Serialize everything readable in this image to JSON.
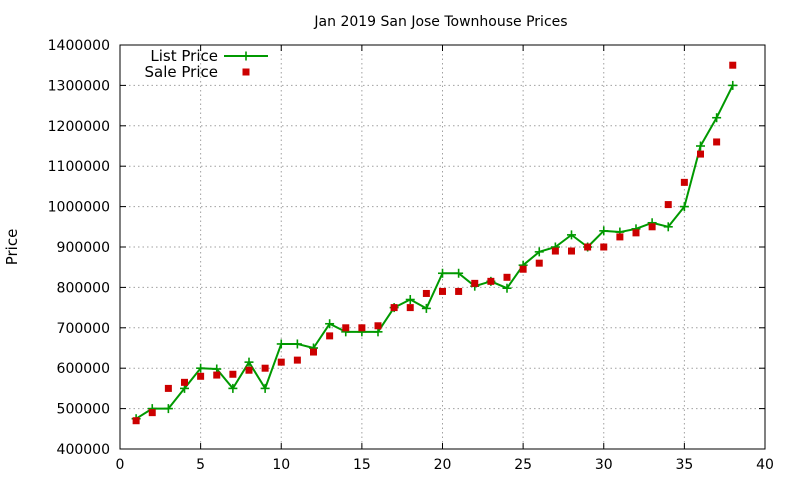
{
  "chart_data": {
    "type": "line",
    "title": "Jan 2019 San Jose Townhouse Prices",
    "xlabel": "",
    "ylabel": "Price",
    "xlim": [
      0,
      40
    ],
    "ylim": [
      400000,
      1400000
    ],
    "xticks": [
      0,
      5,
      10,
      15,
      20,
      25,
      30,
      35,
      40
    ],
    "yticks": [
      400000,
      500000,
      600000,
      700000,
      800000,
      900000,
      1000000,
      1100000,
      1200000,
      1300000,
      1400000
    ],
    "grid": true,
    "legend_position": "top-left",
    "x": [
      1,
      2,
      3,
      4,
      5,
      6,
      7,
      8,
      9,
      10,
      11,
      12,
      13,
      14,
      15,
      16,
      17,
      18,
      19,
      20,
      21,
      22,
      23,
      24,
      25,
      26,
      27,
      28,
      29,
      30,
      31,
      32,
      33,
      34,
      35,
      36,
      37,
      38
    ],
    "series": [
      {
        "name": "List Price",
        "style": "line-with-plus-markers",
        "color": "#009900",
        "values": [
          475000,
          500000,
          500000,
          550000,
          600000,
          598000,
          550000,
          615000,
          550000,
          660000,
          660000,
          650000,
          710000,
          690000,
          690000,
          690000,
          750000,
          770000,
          748000,
          835000,
          835000,
          803000,
          815000,
          798000,
          855000,
          888000,
          900000,
          930000,
          900000,
          940000,
          937000,
          945000,
          960000,
          950000,
          1000000,
          1150000,
          1220000,
          1300000
        ]
      },
      {
        "name": "Sale Price",
        "style": "square-markers",
        "color": "#cc0000",
        "values": [
          470000,
          490000,
          550000,
          565000,
          580000,
          583000,
          585000,
          595000,
          600000,
          615000,
          620000,
          640000,
          680000,
          700000,
          700000,
          705000,
          750000,
          750000,
          785000,
          790000,
          790000,
          810000,
          815000,
          825000,
          845000,
          860000,
          890000,
          890000,
          900000,
          900000,
          925000,
          935000,
          950000,
          1005000,
          1060000,
          1130000,
          1160000,
          1350000
        ]
      }
    ]
  }
}
